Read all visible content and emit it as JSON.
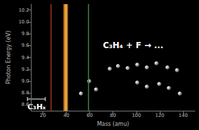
{
  "chart_data": {
    "type": "vlines",
    "xlabel": "Mass (amu)",
    "ylabel": "Photon Energy (eV)",
    "annotations": [
      "C₃H₄ + F → ...",
      "C₃Hₓ"
    ],
    "x": [
      27,
      38,
      39,
      40,
      41,
      59
    ],
    "colors": [
      "#a0301a",
      "#c8641e",
      "#ffb030",
      "#ffe070",
      "#d07020",
      "#3f7a3a"
    ],
    "xlim": [
      10,
      150
    ],
    "xticks": [
      20,
      40,
      60,
      80,
      100,
      120,
      140
    ],
    "ylim": [
      8.5,
      10.3
    ],
    "yticks": [
      8.6,
      8.8,
      {
        "value": 9.0,
        "label": "9.0"
      },
      9.2,
      9.4,
      9.6,
      9.8,
      {
        "value": 10.0,
        "label": "10.0"
      },
      10.2
    ],
    "grid": false
  }
}
